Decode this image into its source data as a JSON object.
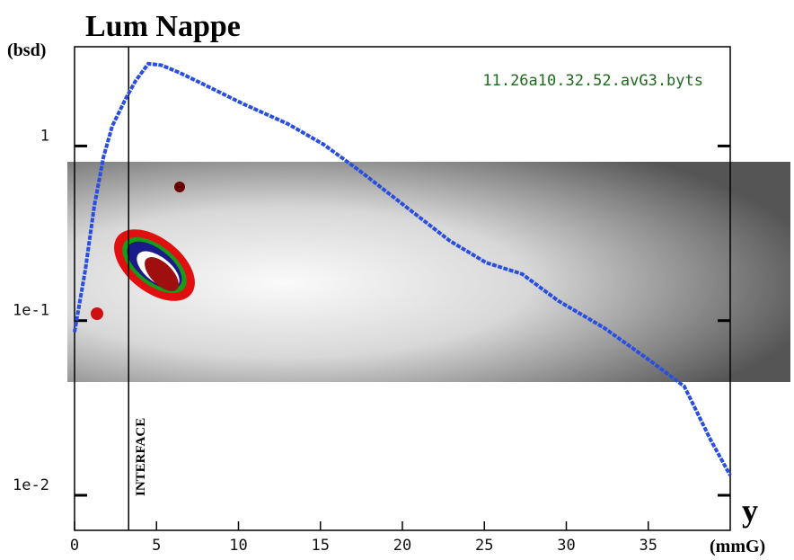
{
  "chart_data": {
    "type": "line",
    "title": "Lum Nappe",
    "y_label": "(bsd)",
    "x_label_main": "y",
    "x_label_unit": "(mmG)",
    "annotation_file": "11.26a10.32.52.avG3.byts",
    "annotation_marker": "INTERFACE",
    "marker_x": 3.3,
    "x": [
      0,
      0.66,
      1.2,
      1.76,
      2.3,
      3.1,
      3.7,
      4.5,
      5.3,
      6.4,
      8.1,
      10.3,
      13.0,
      15.2,
      17.4,
      20.2,
      22.9,
      25.1,
      27.3,
      29.5,
      32.3,
      35.0,
      37.2,
      38.8,
      40.0
    ],
    "series": [
      {
        "name": "profile",
        "color": "#2a4fe0",
        "values": [
          0.086,
          0.196,
          0.45,
          0.86,
          1.3,
          1.85,
          2.34,
          2.96,
          2.9,
          2.63,
          2.2,
          1.74,
          1.34,
          1.02,
          0.72,
          0.45,
          0.286,
          0.215,
          0.185,
          0.13,
          0.091,
          0.06,
          0.042,
          0.0208,
          0.013
        ]
      }
    ],
    "xlim": [
      0,
      40
    ],
    "xticks": [
      0,
      5,
      10,
      15,
      20,
      25,
      30,
      35
    ],
    "ylim": [
      0.0063,
      3.7
    ],
    "log_y": true,
    "yticks": [
      {
        "value": 1,
        "label": "1"
      },
      {
        "value": 0.1,
        "label": "1e-1"
      },
      {
        "value": 0.01,
        "label": "1e-2"
      }
    ]
  }
}
